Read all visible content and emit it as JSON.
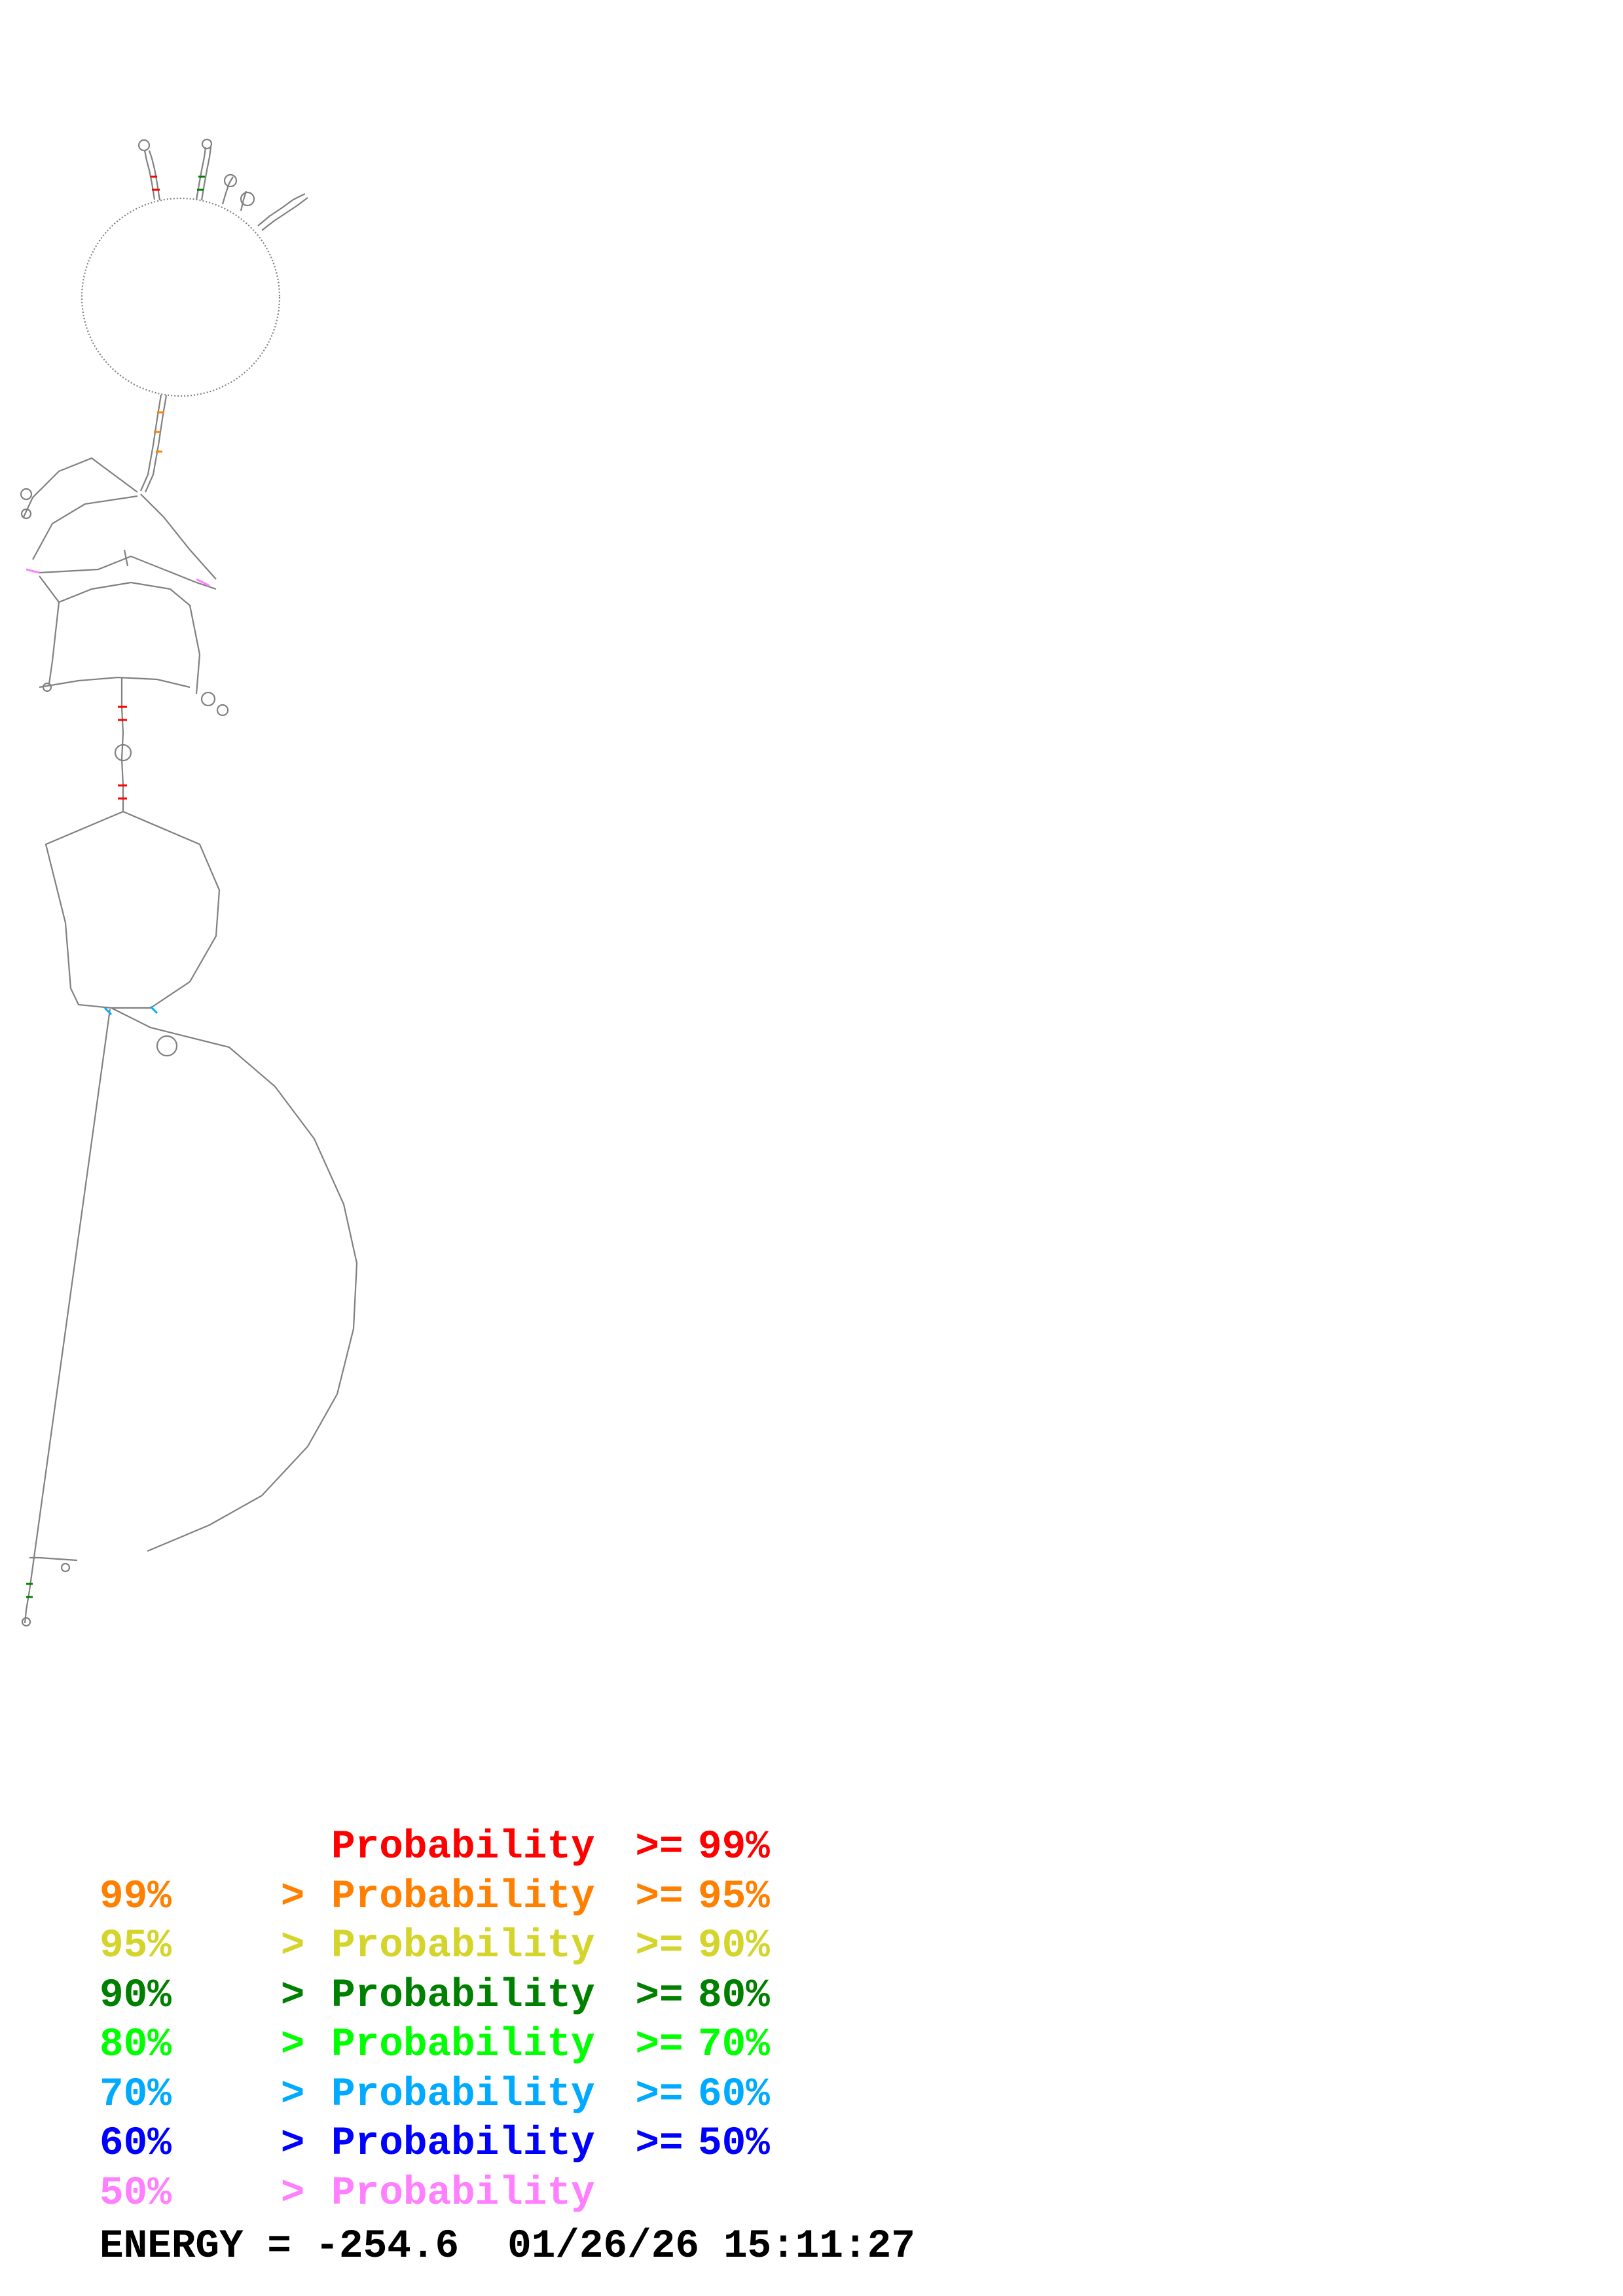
{
  "legend": {
    "rows": [
      {
        "color": "#ff0000",
        "prefix": "",
        "gt": "",
        "word": "Probability",
        "ge": ">=",
        "suffix": "99%"
      },
      {
        "color": "#ff8000",
        "prefix": "99%",
        "gt": ">",
        "word": "Probability",
        "ge": ">=",
        "suffix": "95%"
      },
      {
        "color": "#d4d42a",
        "prefix": "95%",
        "gt": ">",
        "word": "Probability",
        "ge": ">=",
        "suffix": "90%"
      },
      {
        "color": "#008000",
        "prefix": "90%",
        "gt": ">",
        "word": "Probability",
        "ge": ">=",
        "suffix": "80%"
      },
      {
        "color": "#00ff00",
        "prefix": "80%",
        "gt": ">",
        "word": "Probability",
        "ge": ">=",
        "suffix": "70%"
      },
      {
        "color": "#00aaff",
        "prefix": "70%",
        "gt": ">",
        "word": "Probability",
        "ge": ">=",
        "suffix": "60%"
      },
      {
        "color": "#0000ff",
        "prefix": "60%",
        "gt": ">",
        "word": "Probability",
        "ge": ">=",
        "suffix": "50%"
      },
      {
        "color": "#ff80ff",
        "prefix": "50%",
        "gt": ">",
        "word": "Probability",
        "ge": "",
        "suffix": ""
      }
    ]
  },
  "energy": {
    "label": "ENERGY = -254.6",
    "date": "01/26/26",
    "time": "15:11:27"
  },
  "structure": {
    "line_color": "#808080",
    "pair_colors": [
      "#ff0000",
      "#ff8000",
      "#008000",
      "#00aaff",
      "#ff80ff"
    ]
  }
}
